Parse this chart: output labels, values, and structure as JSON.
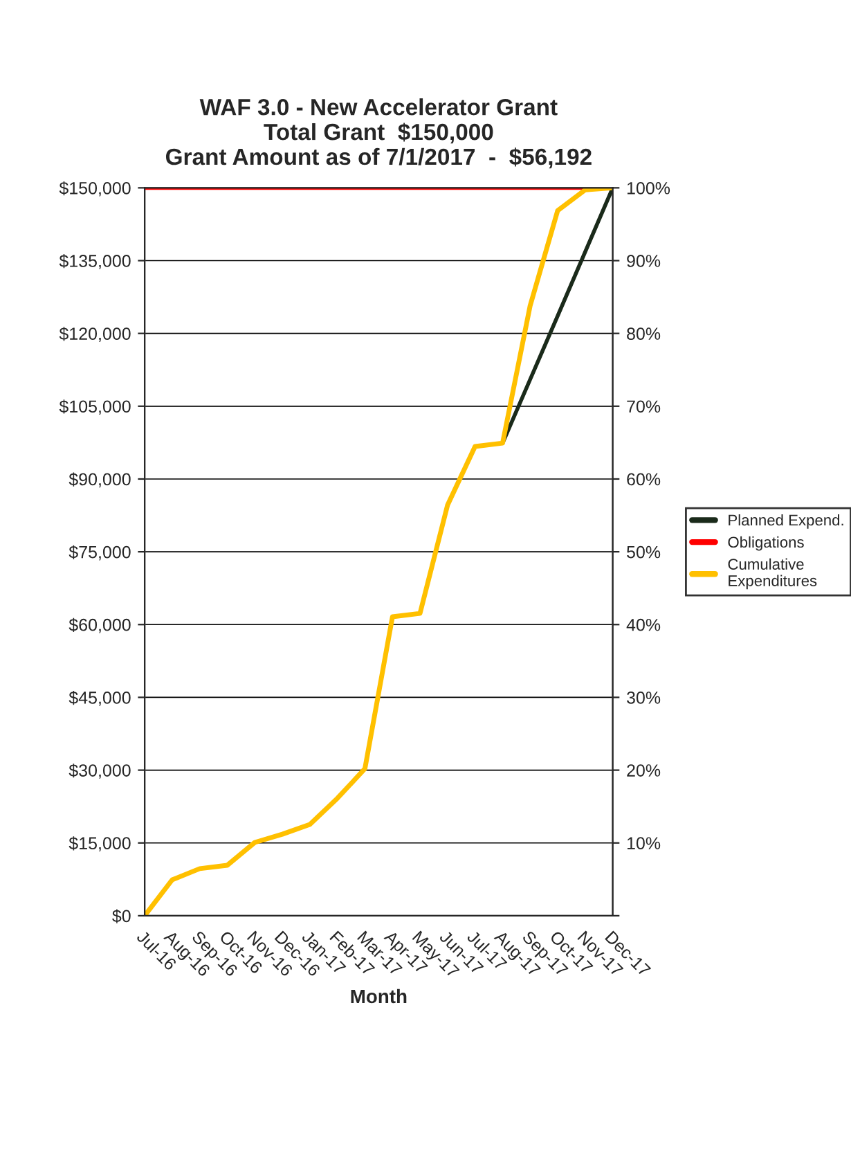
{
  "chart_data": {
    "type": "line",
    "title": "WAF 3.0 - New Accelerator Grant\nTotal Grant  $150,000\nGrant Amount as of 7/1/2017  -  $56,192",
    "xlabel": "Month",
    "categories": [
      "Jul-16",
      "Aug-16",
      "Sep-16",
      "Oct-16",
      "Nov-16",
      "Dec-16",
      "Jan-17",
      "Feb-17",
      "Mar-17",
      "Apr-17",
      "May-17",
      "Jun-17",
      "Jul-17",
      "Aug-17",
      "Sep-17",
      "Oct-17",
      "Nov-17",
      "Dec-17"
    ],
    "series": [
      {
        "name": "Planned Expend.",
        "color": "#1a2a1a",
        "values": [
          null,
          null,
          null,
          null,
          null,
          null,
          null,
          null,
          null,
          null,
          null,
          null,
          null,
          97400,
          110500,
          123600,
          136800,
          150000
        ]
      },
      {
        "name": "Obligations",
        "color": "#ff0000",
        "values": [
          150000,
          150000,
          150000,
          150000,
          150000,
          150000,
          150000,
          150000,
          150000,
          150000,
          150000,
          150000,
          150000,
          150000,
          150000,
          150000,
          150000,
          150000
        ]
      },
      {
        "name": "Cumulative\nExpenditures",
        "color": "#ffc000",
        "values": [
          0,
          7400,
          9700,
          10400,
          15100,
          16800,
          18800,
          24200,
          30300,
          61600,
          62300,
          84600,
          96700,
          97400,
          125700,
          145300,
          149600,
          150000
        ]
      }
    ],
    "ylim": [
      0,
      150000
    ],
    "yticks": [
      {
        "value": 0,
        "label": "$0"
      },
      {
        "value": 15000,
        "label": "$15,000"
      },
      {
        "value": 30000,
        "label": "$30,000"
      },
      {
        "value": 45000,
        "label": "$45,000"
      },
      {
        "value": 60000,
        "label": "$60,000"
      },
      {
        "value": 75000,
        "label": "$75,000"
      },
      {
        "value": 90000,
        "label": "$90,000"
      },
      {
        "value": 105000,
        "label": "$105,000"
      },
      {
        "value": 120000,
        "label": "$120,000"
      },
      {
        "value": 135000,
        "label": "$135,000"
      },
      {
        "value": 150000,
        "label": "$150,000"
      }
    ],
    "y2lim": [
      0,
      100
    ],
    "y2ticks": [
      {
        "value": 0,
        "label": null
      },
      {
        "value": 10,
        "label": "10%"
      },
      {
        "value": 20,
        "label": "20%"
      },
      {
        "value": 30,
        "label": "30%"
      },
      {
        "value": 40,
        "label": "40%"
      },
      {
        "value": 50,
        "label": "50%"
      },
      {
        "value": 60,
        "label": "60%"
      },
      {
        "value": 70,
        "label": "70%"
      },
      {
        "value": 80,
        "label": "80%"
      },
      {
        "value": 90,
        "label": "90%"
      },
      {
        "value": 100,
        "label": "100%"
      }
    ],
    "grid": "y",
    "legend": "right",
    "marker": "none",
    "line_style": "solid"
  }
}
